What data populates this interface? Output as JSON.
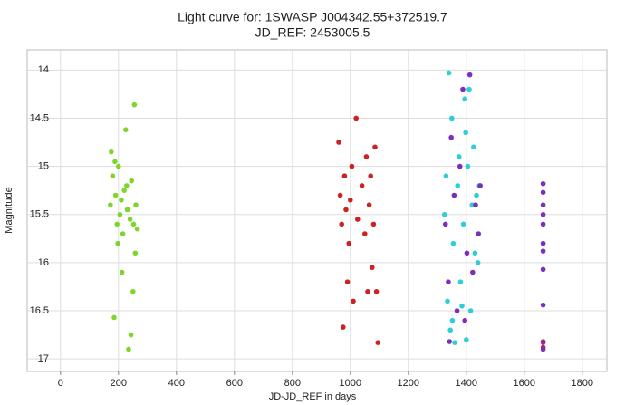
{
  "chart_data": {
    "type": "scatter",
    "title": "Light curve for: 1SWASP J004342.55+372519.7",
    "subtitle": "JD_REF: 2453005.5",
    "x_label": "JD-JD_REF in days",
    "y_label": "Magnitude",
    "xlim": [
      -115,
      1885
    ],
    "ylim": [
      13.79,
      17.13
    ],
    "invert_y": true,
    "xticks": [
      0,
      200,
      400,
      600,
      800,
      1000,
      1200,
      1400,
      1600,
      1800
    ],
    "yticks": [
      14,
      14.5,
      15,
      15.5,
      16,
      16.5,
      17
    ],
    "grid": true,
    "series": [
      {
        "color": "#7fd62a",
        "x": [
          172,
          180,
          185,
          190,
          195,
          200,
          205,
          210,
          215,
          220,
          225,
          230,
          235,
          240,
          245,
          250,
          255,
          260,
          265,
          175,
          198,
          212,
          228,
          243,
          258,
          188,
          233,
          252
        ],
        "values": [
          15.4,
          15.1,
          16.57,
          15.3,
          15.6,
          15.0,
          15.5,
          15.35,
          15.7,
          15.25,
          14.62,
          15.45,
          16.9,
          15.55,
          15.15,
          16.3,
          14.36,
          15.4,
          15.65,
          14.85,
          15.8,
          16.1,
          15.2,
          16.75,
          15.9,
          14.95,
          15.45,
          15.6
        ]
      },
      {
        "color": "#cc2222",
        "x": [
          960,
          965,
          970,
          975,
          980,
          985,
          990,
          995,
          1000,
          1005,
          1010,
          1020,
          1025,
          1040,
          1050,
          1055,
          1060,
          1065,
          1070,
          1075,
          1080,
          1085,
          1090,
          1095,
          1665,
          1665
        ],
        "values": [
          14.75,
          15.3,
          15.6,
          16.67,
          15.1,
          15.45,
          16.2,
          15.8,
          15.35,
          15.0,
          16.4,
          14.5,
          15.55,
          15.2,
          15.7,
          14.9,
          16.3,
          15.4,
          15.1,
          16.05,
          15.6,
          14.8,
          16.3,
          16.83,
          16.82,
          16.88
        ]
      },
      {
        "color": "#2ccfd6",
        "x": [
          1325,
          1330,
          1335,
          1340,
          1345,
          1350,
          1355,
          1360,
          1370,
          1375,
          1380,
          1390,
          1395,
          1400,
          1405,
          1410,
          1415,
          1420,
          1425,
          1430,
          1435,
          1440,
          1445,
          1352,
          1385,
          1398
        ],
        "values": [
          15.5,
          15.1,
          16.4,
          14.03,
          16.7,
          14.5,
          15.8,
          16.83,
          15.2,
          14.9,
          16.2,
          15.6,
          14.3,
          16.8,
          15.0,
          14.2,
          16.5,
          15.4,
          14.8,
          15.9,
          15.3,
          16.0,
          15.2,
          16.6,
          16.45,
          14.65
        ]
      },
      {
        "color": "#7b2fc0",
        "x": [
          1328,
          1338,
          1348,
          1358,
          1368,
          1378,
          1388,
          1402,
          1412,
          1422,
          1432,
          1442,
          1448,
          1342,
          1395,
          1665,
          1665,
          1665,
          1665,
          1665,
          1665,
          1665,
          1665,
          1665,
          1665,
          1665
        ],
        "values": [
          15.6,
          16.2,
          14.7,
          15.3,
          16.5,
          15.0,
          14.2,
          15.9,
          14.05,
          16.1,
          15.4,
          15.7,
          15.2,
          16.82,
          16.6,
          15.18,
          15.27,
          15.4,
          15.5,
          15.6,
          15.8,
          15.88,
          16.07,
          16.44,
          16.83,
          16.9
        ]
      }
    ]
  }
}
